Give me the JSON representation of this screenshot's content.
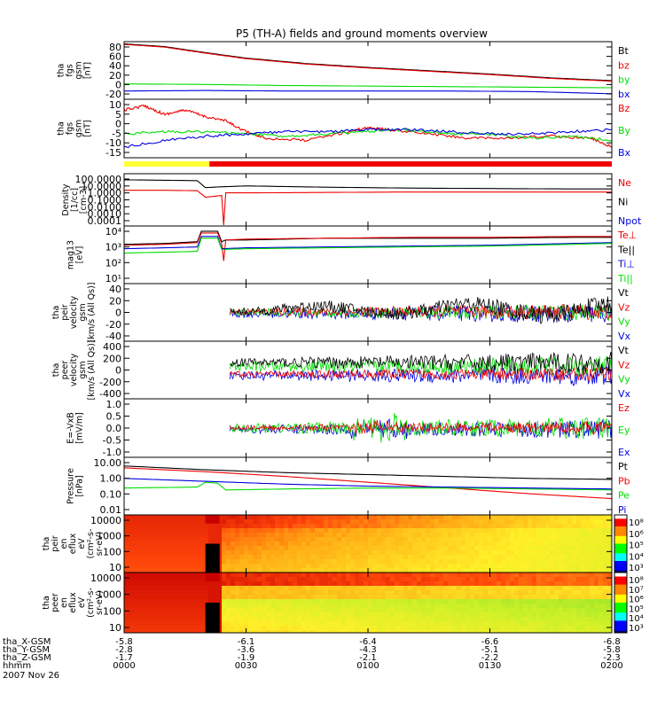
{
  "title": "P5 (TH-A) fields and ground moments overview",
  "colors": {
    "black": "#000000",
    "red": "#ee0000",
    "green": "#00dd00",
    "blue": "#0000dd",
    "yellow": "#ffff33",
    "bar_red": "#ee0000"
  },
  "chart_data": [
    {
      "type": "line",
      "ylabel": [
        "tha",
        "fgs",
        "gsm",
        "[nT]"
      ],
      "yticks": [
        "80",
        "60",
        "40",
        "20",
        "0",
        "-20"
      ],
      "ylim": [
        -20,
        85
      ],
      "legend": [
        "Bt",
        "bz",
        "by",
        "bx"
      ],
      "series": [
        {
          "name": "Bt",
          "color": "#000000",
          "x": [
            0,
            10,
            20,
            30,
            45,
            60,
            75,
            90,
            105,
            120
          ],
          "y": [
            81,
            76,
            65,
            55,
            45,
            38,
            32,
            26,
            19,
            14
          ]
        },
        {
          "name": "bz",
          "color": "#ee0000",
          "x": [
            0,
            10,
            20,
            30,
            45,
            60,
            75,
            90,
            105,
            120
          ],
          "y": [
            80,
            75,
            64,
            54,
            44,
            37,
            31,
            25,
            18,
            13
          ]
        },
        {
          "name": "by",
          "color": "#00dd00",
          "x": [
            0,
            20,
            40,
            60,
            80,
            100,
            120
          ],
          "y": [
            8,
            7,
            5,
            4,
            3,
            2,
            1
          ]
        },
        {
          "name": "bx",
          "color": "#0000dd",
          "x": [
            0,
            20,
            40,
            60,
            80,
            100,
            120
          ],
          "y": [
            -5,
            -4,
            -5,
            -5,
            -5,
            -6,
            -10
          ]
        }
      ]
    },
    {
      "type": "line",
      "ylabel": [
        "tha",
        "fgs",
        "gsm",
        "[nT]"
      ],
      "yticks": [
        "10",
        "5",
        "0",
        "-5",
        "-10",
        "-15"
      ],
      "ylim": [
        -16,
        11
      ],
      "legend": [
        "Bz",
        "By",
        "Bx"
      ],
      "series": [
        {
          "name": "Bz",
          "color": "#ee0000",
          "x": [
            0,
            5,
            10,
            15,
            20,
            25,
            30,
            35,
            45,
            55,
            60,
            65,
            75,
            85,
            95,
            105,
            115,
            120
          ],
          "y": [
            6,
            8,
            4,
            6,
            3,
            1,
            -4,
            -7,
            -8,
            -4,
            -2,
            -3,
            -5,
            -7,
            -7,
            -6,
            -7,
            -11
          ]
        },
        {
          "name": "By",
          "color": "#00dd00",
          "x": [
            0,
            10,
            20,
            30,
            40,
            50,
            60,
            70,
            80,
            90,
            100,
            110,
            120
          ],
          "y": [
            -5,
            -4,
            -4,
            -5,
            -6,
            -5,
            -4,
            -3,
            -5,
            -5,
            -7,
            -6,
            -8
          ]
        },
        {
          "name": "Bx",
          "color": "#0000dd",
          "x": [
            0,
            10,
            20,
            30,
            40,
            50,
            60,
            70,
            80,
            90,
            100,
            110,
            120
          ],
          "y": [
            -11,
            -8,
            -6,
            -5,
            -4,
            -4,
            -3,
            -3,
            -4,
            -5,
            -5,
            -4,
            -3
          ]
        }
      ]
    },
    {
      "type": "line",
      "ylabel": [
        "Density",
        "[1/cc]",
        "[cm-3]"
      ],
      "yticks": [
        "100.0000",
        "10.0000",
        "1.0000",
        "0.1000",
        "0.0100",
        "0.0010",
        "0.0001"
      ],
      "ylim": [
        -4,
        2
      ],
      "log": true,
      "legend": [
        "Ne",
        "Ni",
        "Npot"
      ],
      "series": [
        {
          "name": "Ni",
          "color": "#000000",
          "x": [
            0,
            10,
            18,
            20,
            24,
            30,
            50,
            70,
            90,
            110,
            120
          ],
          "y": [
            1.3,
            1.25,
            1.2,
            0.4,
            0.5,
            0.6,
            0.45,
            0.35,
            0.3,
            0.25,
            0.25
          ]
        },
        {
          "name": "Ne",
          "color": "#ee0000",
          "x": [
            0,
            10,
            18,
            20,
            22,
            24,
            24.5,
            25,
            30,
            50,
            70,
            90,
            110,
            120
          ],
          "y": [
            0.1,
            0.1,
            0.05,
            -0.7,
            -0.6,
            -0.5,
            -3.9,
            -0.2,
            -0.2,
            -0.15,
            -0.1,
            -0.1,
            -0.1,
            -0.1
          ]
        }
      ]
    },
    {
      "type": "line",
      "ylabel": [
        "mag13",
        "[eV]"
      ],
      "yticks": [
        "10⁴",
        "10³",
        "10²",
        "10¹"
      ],
      "ylim": [
        1,
        4.3
      ],
      "log": true,
      "legend": [
        "Te⊥",
        "Te||",
        "Ti⊥",
        "Ti||"
      ],
      "series": [
        {
          "name": "Te||",
          "color": "#000000",
          "x": [
            0,
            10,
            18,
            19,
            23,
            24,
            25,
            30,
            50,
            70,
            90,
            110,
            120
          ],
          "y": [
            3.25,
            3.3,
            3.4,
            4.0,
            4.0,
            3.4,
            3.5,
            3.5,
            3.6,
            3.6,
            3.6,
            3.65,
            3.65
          ]
        },
        {
          "name": "Te⊥",
          "color": "#ee0000",
          "x": [
            0,
            10,
            18,
            19,
            23,
            24,
            24.5,
            25,
            30,
            50,
            70,
            90,
            110,
            120
          ],
          "y": [
            3.2,
            3.25,
            3.35,
            3.9,
            3.9,
            3.3,
            2.3,
            3.5,
            3.55,
            3.6,
            3.65,
            3.65,
            3.7,
            3.7
          ]
        },
        {
          "name": "Ti⊥",
          "color": "#0000dd",
          "x": [
            0,
            10,
            18,
            19,
            23,
            24,
            30,
            50,
            70,
            90,
            110,
            120
          ],
          "y": [
            3.0,
            3.05,
            3.1,
            3.7,
            3.7,
            3.0,
            3.05,
            3.1,
            3.15,
            3.2,
            3.3,
            3.35
          ]
        },
        {
          "name": "Ti||",
          "color": "#00dd00",
          "x": [
            0,
            10,
            18,
            19,
            23,
            24,
            30,
            50,
            70,
            90,
            110,
            120
          ],
          "y": [
            2.75,
            2.8,
            2.85,
            3.6,
            3.6,
            2.95,
            3.0,
            3.05,
            3.1,
            3.15,
            3.25,
            3.3
          ]
        }
      ]
    },
    {
      "type": "line",
      "ylabel": [
        "tha",
        "peir",
        "velocity",
        "gsm",
        "[km/s (All Qs)]"
      ],
      "yticks": [
        "40",
        "20",
        "0",
        "-20",
        "-40"
      ],
      "ylim": [
        -45,
        45
      ],
      "legend": [
        "Vt",
        "Vz",
        "Vy",
        "Vx"
      ],
      "noisy": {
        "start": 26,
        "base": [
          5,
          1,
          0,
          -2
        ],
        "amp": [
          6,
          5,
          5,
          6
        ]
      }
    },
    {
      "type": "line",
      "ylabel": [
        "tha",
        "peer",
        "velocity",
        "gsm",
        "[km/s (All Qs)]"
      ],
      "yticks": [
        "400",
        "200",
        "0",
        "-200",
        "-400"
      ],
      "ylim": [
        -420,
        420
      ],
      "legend": [
        "Vt",
        "Vz",
        "Vy",
        "Vx"
      ],
      "noisy": {
        "start": 26,
        "base": [
          110,
          -60,
          50,
          -80
        ],
        "amp": [
          60,
          40,
          60,
          60
        ]
      }
    },
    {
      "type": "line",
      "ylabel": [
        "E=-VxB",
        "[mV/m]"
      ],
      "yticks": [
        "1.0",
        "0.5",
        "0.0",
        "-0.5",
        "-1.0"
      ],
      "ylim": [
        -1.2,
        1.2
      ],
      "legend": [
        "Ez",
        "Ey",
        "Ex"
      ],
      "noisy": {
        "start": 26,
        "base": [
          0.02,
          0.0,
          -0.05
        ],
        "amp": [
          0.1,
          0.18,
          0.15
        ]
      }
    },
    {
      "type": "line",
      "ylabel": [
        "Pressure",
        "[nPa]"
      ],
      "yticks": [
        "10.00",
        "1.00",
        "0.10",
        "0.01"
      ],
      "ylim": [
        -2,
        1
      ],
      "log": true,
      "legend": [
        "Pt",
        "Pb",
        "Pe",
        "Pi"
      ],
      "series": [
        {
          "name": "Pt",
          "color": "#000000",
          "x": [
            0,
            20,
            40,
            60,
            80,
            100,
            120
          ],
          "y": [
            0.55,
            0.35,
            0.2,
            0.1,
            0.0,
            -0.1,
            -0.15
          ]
        },
        {
          "name": "Pb",
          "color": "#ee0000",
          "x": [
            0,
            20,
            40,
            60,
            80,
            100,
            120
          ],
          "y": [
            0.45,
            0.25,
            0.0,
            -0.3,
            -0.6,
            -0.9,
            -1.15
          ]
        },
        {
          "name": "Pe",
          "color": "#00dd00",
          "x": [
            0,
            18,
            20,
            23,
            25,
            40,
            60,
            80,
            100,
            120
          ],
          "y": [
            -0.6,
            -0.55,
            -0.3,
            -0.35,
            -0.7,
            -0.65,
            -0.6,
            -0.6,
            -0.65,
            -0.7
          ]
        },
        {
          "name": "Pi",
          "color": "#0000dd",
          "x": [
            0,
            20,
            40,
            60,
            80,
            100,
            120
          ],
          "y": [
            -0.1,
            -0.25,
            -0.4,
            -0.5,
            -0.55,
            -0.6,
            -0.65
          ]
        }
      ]
    },
    {
      "type": "heatmap",
      "ylabel": [
        "tha",
        "peir",
        "en",
        "eflux",
        "eV",
        "(cm²-s-",
        "sr-eV)"
      ],
      "yticks": [
        "10000",
        "1000",
        "100",
        "10"
      ],
      "colorbar_ticks": [
        "10⁸",
        "10⁶",
        "10⁵",
        "10⁴",
        "10³"
      ]
    },
    {
      "type": "heatmap",
      "ylabel": [
        "tha",
        "peer",
        "en",
        "eflux",
        "eV",
        "(cm²-s-",
        "sr-eV)"
      ],
      "yticks": [
        "10000",
        "1000",
        "100",
        "10"
      ],
      "colorbar_ticks": [
        "10⁸",
        "10⁷",
        "10⁶",
        "10⁵",
        "10⁴",
        "10³"
      ]
    }
  ],
  "xaxis": {
    "rows": [
      {
        "label": "tha_X-GSM",
        "values": [
          "-5.8",
          "-6.1",
          "-6.4",
          "-6.6",
          "-6.8"
        ]
      },
      {
        "label": "tha_Y-GSM",
        "values": [
          "-2.8",
          "-3.6",
          "-4.3",
          "-5.1",
          "-5.8"
        ]
      },
      {
        "label": "tha_Z-GSM",
        "values": [
          "-1.7",
          "-1.9",
          "-2.1",
          "-2.2",
          "-2.3"
        ]
      },
      {
        "label": "hhmm",
        "values": [
          "0000",
          "0030",
          "0100",
          "0130",
          "0200"
        ]
      }
    ],
    "date": "2007 Nov 26"
  }
}
